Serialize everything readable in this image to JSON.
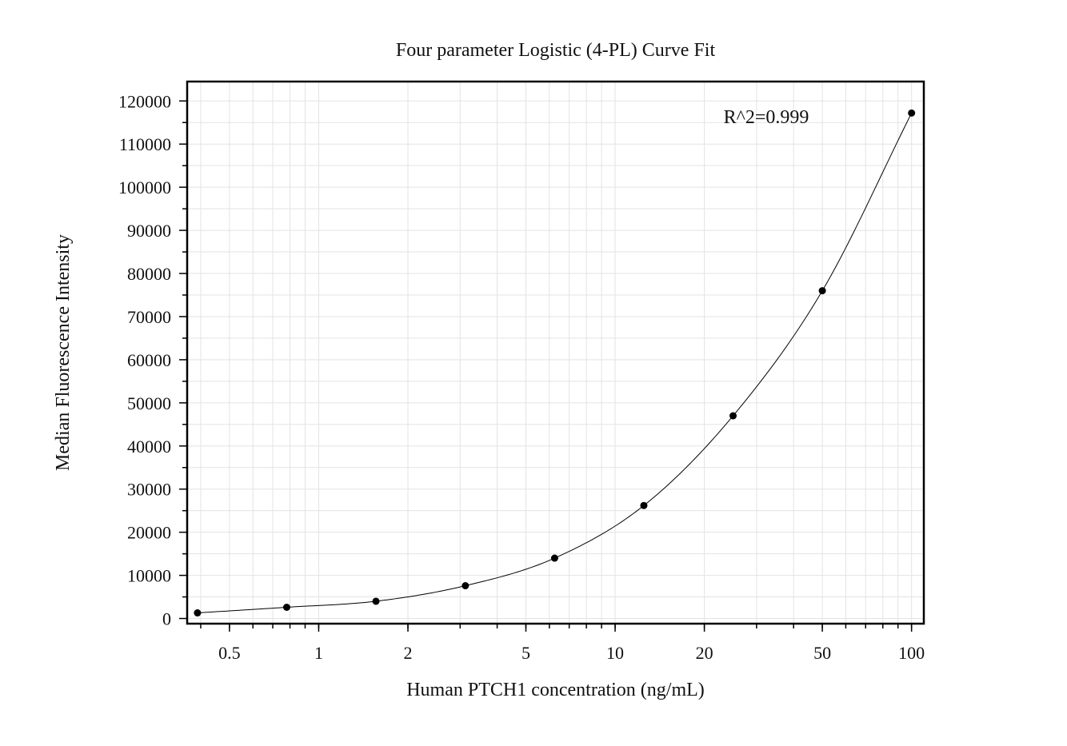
{
  "chart_data": {
    "type": "scatter",
    "title": "Four parameter Logistic (4-PL) Curve Fit",
    "xlabel": "Human PTCH1 concentration (ng/mL)",
    "ylabel": "Median Fluorescence Intensity",
    "x_scale": "log",
    "xlim": [
      0.36,
      110
    ],
    "ylim": [
      -1200,
      124500
    ],
    "x_ticks": [
      0.5,
      1,
      2,
      5,
      10,
      20,
      50,
      100
    ],
    "x_tick_labels": [
      "0.5",
      "1",
      "2",
      "5",
      "10",
      "20",
      "50",
      "100"
    ],
    "y_ticks": [
      0,
      10000,
      20000,
      30000,
      40000,
      50000,
      60000,
      70000,
      80000,
      90000,
      100000,
      110000,
      120000
    ],
    "y_tick_labels": [
      "0",
      "10000",
      "20000",
      "30000",
      "40000",
      "50000",
      "60000",
      "70000",
      "80000",
      "90000",
      "100000",
      "110000",
      "120000"
    ],
    "grid": true,
    "annotation": "R^2=0.999",
    "series": [
      {
        "x": [
          0.39,
          0.78,
          1.56,
          3.125,
          6.25,
          12.5,
          25,
          50,
          100
        ],
        "y": [
          1300,
          2600,
          4000,
          7600,
          14000,
          26200,
          47000,
          76000,
          117200
        ]
      }
    ],
    "colors": {
      "points": "#000000",
      "curve": "#000000",
      "grid": "#e3e3e3",
      "frame": "#000000"
    }
  }
}
